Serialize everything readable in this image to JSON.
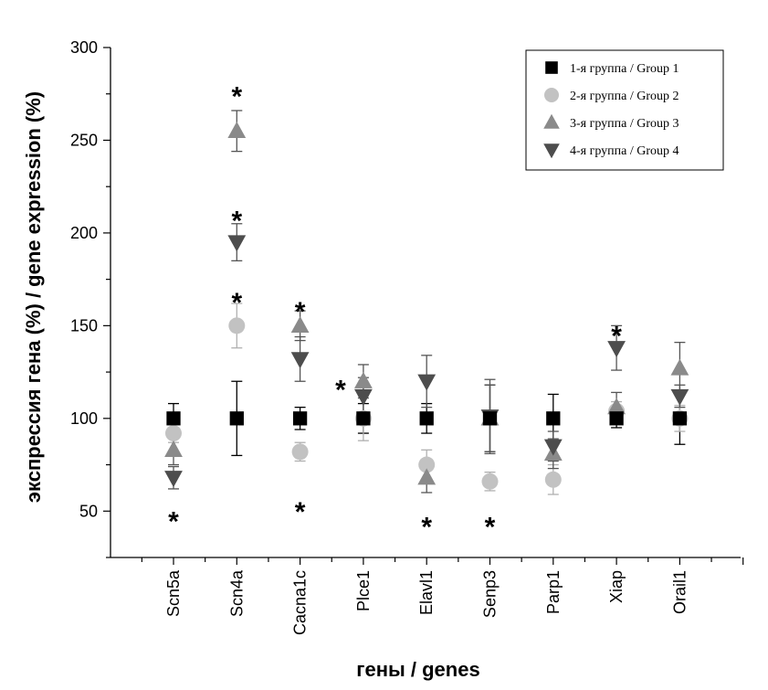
{
  "chart_data": {
    "type": "scatter",
    "ylabel": "экспрессия гена (%) / gene expression (%)",
    "xlabel": "гены / genes",
    "categories": [
      "Scn5a",
      "Scn4a",
      "Cacna1c",
      "Plce1",
      "Elavl1",
      "Senp3",
      "Parp1",
      "Xiap",
      "Orail1"
    ],
    "ylim": [
      25,
      300
    ],
    "yticks": [
      50,
      100,
      150,
      200,
      250,
      300
    ],
    "legend_position": "top-right",
    "series": [
      {
        "name": "1-я группа / Group 1",
        "marker": "square",
        "color": "#000000",
        "values": [
          100,
          100,
          100,
          100,
          100,
          100,
          100,
          100,
          100
        ],
        "errors": [
          8,
          20,
          6,
          8,
          8,
          18,
          13,
          5,
          14
        ]
      },
      {
        "name": "2-я группа / Group 2",
        "marker": "circle",
        "color": "#c2c2c2",
        "values": [
          92,
          150,
          82,
          100,
          75,
          66,
          67,
          104,
          100
        ],
        "errors": [
          5,
          12,
          5,
          12,
          8,
          5,
          8,
          5,
          7
        ]
      },
      {
        "name": "3-я группа / Group 3",
        "marker": "triangle-up",
        "color": "#8a8a8a",
        "values": [
          83,
          255,
          150,
          120,
          68,
          100,
          81,
          106,
          127
        ],
        "errors": [
          8,
          11,
          8,
          9,
          8,
          18,
          8,
          8,
          14
        ]
      },
      {
        "name": "4-я группа / Group 4",
        "marker": "triangle-down",
        "color": "#4d4d4d",
        "values": [
          68,
          195,
          132,
          112,
          120,
          101,
          85,
          138,
          112
        ],
        "errors": [
          6,
          10,
          12,
          10,
          14,
          20,
          8,
          12,
          6
        ]
      }
    ],
    "annotations": [
      {
        "text": "*",
        "category": "Scn5a",
        "y": 47
      },
      {
        "text": "*",
        "category": "Scn4a",
        "y": 276
      },
      {
        "text": "*",
        "category": "Scn4a",
        "y": 209
      },
      {
        "text": "*",
        "category": "Scn4a",
        "y": 165
      },
      {
        "text": "*",
        "category": "Cacna1c",
        "y": 160
      },
      {
        "text": "*",
        "category": "Cacna1c",
        "y": 52
      },
      {
        "text": "*",
        "category": "Cacna1c",
        "offset": 0.64,
        "y": 118
      },
      {
        "text": "*",
        "category": "Elavl1",
        "y": 44
      },
      {
        "text": "*",
        "category": "Senp3",
        "y": 44
      },
      {
        "text": "*",
        "category": "Xiap",
        "y": 147
      }
    ]
  }
}
